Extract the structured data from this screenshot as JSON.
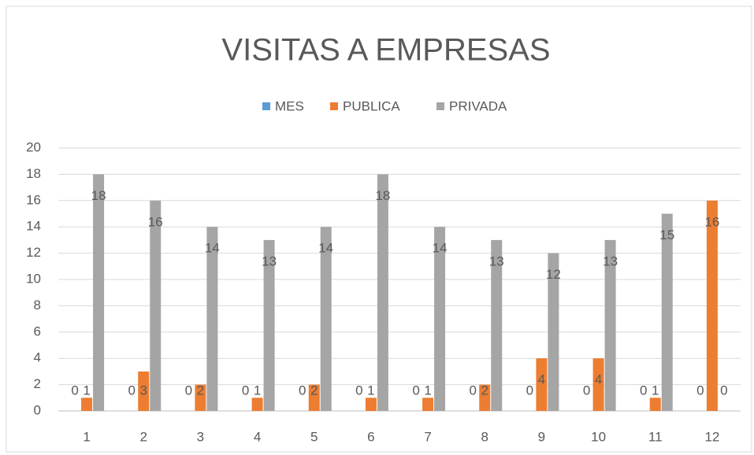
{
  "chart_data": {
    "type": "bar",
    "title": "VISITAS A EMPRESAS",
    "categories": [
      "1",
      "2",
      "3",
      "4",
      "5",
      "6",
      "7",
      "8",
      "9",
      "10",
      "11",
      "12"
    ],
    "series": [
      {
        "name": "MES",
        "color": "#5b9bd5",
        "values": [
          0,
          0,
          0,
          0,
          0,
          0,
          0,
          0,
          0,
          0,
          0,
          0
        ]
      },
      {
        "name": "PUBLICA",
        "color": "#ed7d31",
        "values": [
          1,
          3,
          2,
          1,
          2,
          1,
          1,
          2,
          4,
          4,
          1,
          16
        ]
      },
      {
        "name": "PRIVADA",
        "color": "#a5a5a5",
        "values": [
          18,
          16,
          14,
          13,
          14,
          18,
          14,
          13,
          12,
          13,
          15,
          0
        ]
      }
    ],
    "ylim": [
      0,
      20
    ],
    "yticks": [
      0,
      2,
      4,
      6,
      8,
      10,
      12,
      14,
      16,
      18,
      20
    ],
    "grid": true,
    "legend": "top"
  }
}
